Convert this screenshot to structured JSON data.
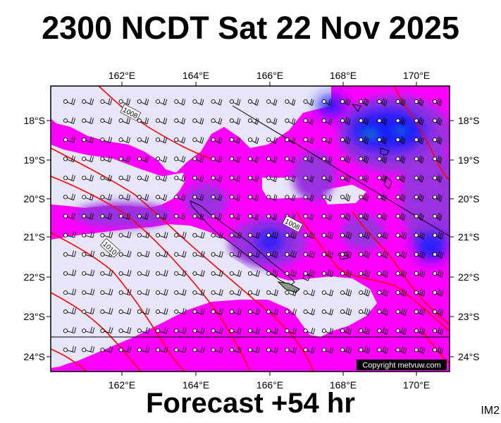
{
  "header": {
    "title": "2300 NCDT Sat 22 Nov 2025"
  },
  "footer": {
    "forecast": "Forecast +54 hr",
    "image_id": "IM2"
  },
  "map": {
    "type": "wind and pressure forecast map",
    "lon_ticks": [
      "162°E",
      "164°E",
      "166°E",
      "168°E",
      "170°E"
    ],
    "lat_ticks": [
      "18°S",
      "19°S",
      "20°S",
      "21°S",
      "22°S",
      "23°S",
      "24°S"
    ],
    "isobar_labels": [
      "1008",
      "1008",
      "1010"
    ],
    "copyright": "Copyright metvuw.com",
    "colors": {
      "calm": "#e6e6f8",
      "moderate": "#ff00ff",
      "strong": "#8a2be2",
      "very_strong": "#0000ff",
      "isobar": "#ff0000",
      "frame": "#000000"
    }
  }
}
